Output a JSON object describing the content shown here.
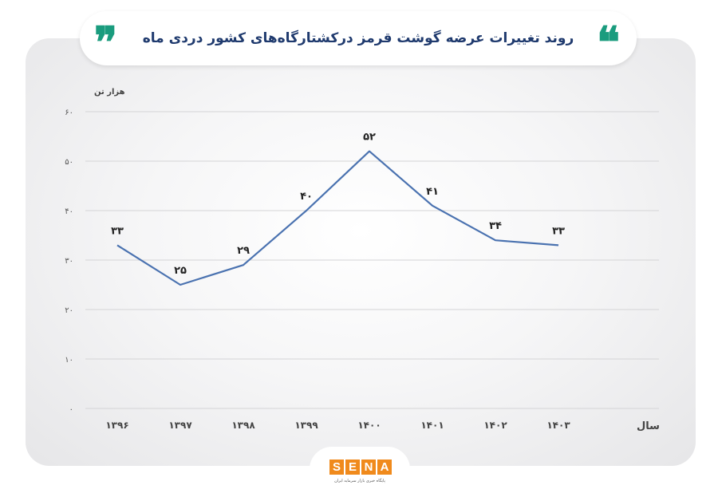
{
  "header": {
    "title": "روند تغییرات عرضه گوشت قرمز درکشتارگاه‌های کشور دردی ماه",
    "quote_open": "❞",
    "quote_close": "❝"
  },
  "chart_data": {
    "type": "line",
    "title": "روند تغییرات عرضه گوشت قرمز درکشتارگاه‌های کشور دردی ماه",
    "ylabel": "هزار تن",
    "xlabel": "سال",
    "categories": [
      "۱۳۹۶",
      "۱۳۹۷",
      "۱۳۹۸",
      "۱۳۹۹",
      "۱۴۰۰",
      "۱۴۰۱",
      "۱۴۰۲",
      "۱۴۰۳"
    ],
    "values": [
      33,
      25,
      29,
      40,
      52,
      41,
      34,
      33
    ],
    "value_labels": [
      "۳۳",
      "۲۵",
      "۲۹",
      "۴۰",
      "۵۲",
      "۴۱",
      "۳۴",
      "۳۳"
    ],
    "ylim": [
      0,
      60
    ],
    "yticks": [
      0,
      10,
      20,
      30,
      40,
      50,
      60
    ],
    "ytick_labels": [
      "۰",
      "۱۰",
      "۲۰",
      "۳۰",
      "۴۰",
      "۵۰",
      "۶۰"
    ],
    "grid": true,
    "line_color": "#4a72b0"
  },
  "logo": {
    "letters": [
      "S",
      "E",
      "N",
      "A"
    ],
    "subtitle": "پایگاه خبری بازار سرمایه ایران"
  }
}
